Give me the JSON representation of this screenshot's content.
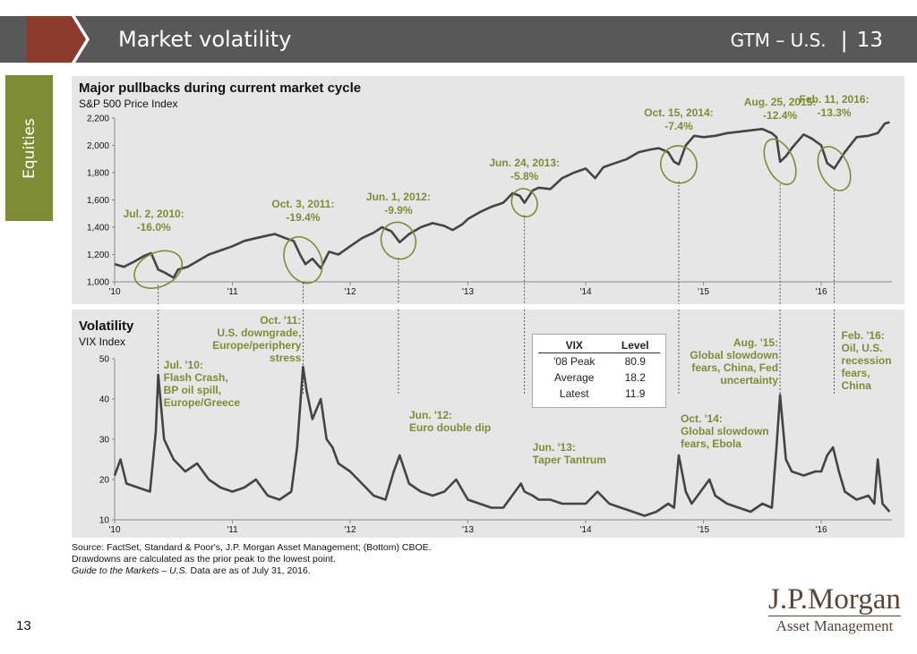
{
  "header": {
    "title": "Market volatility",
    "right_label": "GTM – U.S.",
    "separator": "|",
    "page": "13"
  },
  "section_tab": "Equities",
  "colors": {
    "banner_gray": "#585858",
    "banner_red": "#8b3a2b",
    "accent_green": "#7e8c36",
    "line": "#444444",
    "panel": "#e6e6e6"
  },
  "chart_data": [
    {
      "type": "line",
      "title": "Major pullbacks during current market cycle",
      "subtitle": "S&P 500 Price Index",
      "xlim": [
        2010.0,
        2016.6
      ],
      "ylim": [
        1000,
        2200
      ],
      "yticks": [
        1000,
        1200,
        1400,
        1600,
        1800,
        2000,
        2200
      ],
      "yticklabels": [
        "1,000",
        "1,200",
        "1,400",
        "1,600",
        "1,800",
        "2,000",
        "2,200"
      ],
      "xticks": [
        2010,
        2011,
        2012,
        2013,
        2014,
        2015,
        2016
      ],
      "xticklabels": [
        "'10",
        "'11",
        "'12",
        "'13",
        "'14",
        "'15",
        "'16"
      ],
      "grid": false,
      "series": [
        {
          "x": [
            2010.0,
            2010.08,
            2010.17,
            2010.25,
            2010.31,
            2010.37,
            2010.42,
            2010.5,
            2010.54,
            2010.62,
            2010.7,
            2010.8,
            2010.9,
            2011.0,
            2011.1,
            2011.2,
            2011.3,
            2011.36,
            2011.45,
            2011.52,
            2011.58,
            2011.62,
            2011.68,
            2011.75,
            2011.82,
            2011.9,
            2012.0,
            2012.1,
            2012.2,
            2012.27,
            2012.35,
            2012.42,
            2012.5,
            2012.6,
            2012.7,
            2012.8,
            2012.87,
            2012.95,
            2013.0,
            2013.1,
            2013.2,
            2013.3,
            2013.38,
            2013.44,
            2013.48,
            2013.55,
            2013.6,
            2013.7,
            2013.8,
            2013.9,
            2014.0,
            2014.08,
            2014.15,
            2014.25,
            2014.35,
            2014.45,
            2014.55,
            2014.62,
            2014.7,
            2014.75,
            2014.79,
            2014.85,
            2014.92,
            2015.0,
            2015.1,
            2015.2,
            2015.3,
            2015.4,
            2015.5,
            2015.58,
            2015.62,
            2015.65,
            2015.7,
            2015.75,
            2015.85,
            2015.92,
            2016.0,
            2016.05,
            2016.11,
            2016.2,
            2016.3,
            2016.4,
            2016.48,
            2016.54,
            2016.58
          ],
          "y": [
            1130,
            1110,
            1150,
            1190,
            1210,
            1090,
            1070,
            1030,
            1090,
            1110,
            1150,
            1200,
            1230,
            1260,
            1300,
            1320,
            1340,
            1350,
            1320,
            1300,
            1190,
            1130,
            1170,
            1100,
            1220,
            1200,
            1260,
            1320,
            1360,
            1400,
            1370,
            1290,
            1350,
            1400,
            1430,
            1410,
            1380,
            1420,
            1460,
            1510,
            1550,
            1580,
            1650,
            1630,
            1580,
            1670,
            1690,
            1680,
            1760,
            1800,
            1830,
            1760,
            1840,
            1870,
            1900,
            1950,
            1970,
            1980,
            1950,
            1880,
            1860,
            2000,
            2070,
            2060,
            2070,
            2090,
            2100,
            2110,
            2120,
            2090,
            2060,
            1880,
            1920,
            1980,
            2080,
            2050,
            2000,
            1870,
            1830,
            1950,
            2060,
            2070,
            2090,
            2160,
            2170
          ]
        }
      ],
      "annotations": [
        {
          "date": "Jul. 2, 2010:",
          "value": "-16.0%",
          "x": 2010.37
        },
        {
          "date": "Oct. 3, 2011:",
          "value": "-19.4%",
          "x": 2011.6
        },
        {
          "date": "Jun. 1, 2012:",
          "value": "-9.9%",
          "x": 2012.41
        },
        {
          "date": "Jun. 24, 2013:",
          "value": "-5.8%",
          "x": 2013.48
        },
        {
          "date": "Oct. 15, 2014:",
          "value": "-7.4%",
          "x": 2014.79
        },
        {
          "date": "Aug. 25, 2015:",
          "value": "-12.4%",
          "x": 2015.65
        },
        {
          "date": "Feb. 11, 2016:",
          "value": "-13.3%",
          "x": 2016.11
        }
      ]
    },
    {
      "type": "line",
      "title": "Volatility",
      "subtitle": "VIX Index",
      "xlim": [
        2010.0,
        2016.6
      ],
      "ylim": [
        10,
        50
      ],
      "yticks": [
        10,
        20,
        30,
        40,
        50
      ],
      "yticklabels": [
        "10",
        "20",
        "30",
        "40",
        "50"
      ],
      "xticks": [
        2010,
        2011,
        2012,
        2013,
        2014,
        2015,
        2016
      ],
      "xticklabels": [
        "'10",
        "'11",
        "'12",
        "'13",
        "'14",
        "'15",
        "'16"
      ],
      "grid": false,
      "series": [
        {
          "x": [
            2010.0,
            2010.05,
            2010.1,
            2010.2,
            2010.3,
            2010.35,
            2010.37,
            2010.42,
            2010.5,
            2010.6,
            2010.7,
            2010.8,
            2010.9,
            2011.0,
            2011.1,
            2011.2,
            2011.3,
            2011.4,
            2011.5,
            2011.55,
            2011.6,
            2011.63,
            2011.68,
            2011.75,
            2011.8,
            2011.85,
            2011.9,
            2012.0,
            2012.1,
            2012.2,
            2012.3,
            2012.37,
            2012.42,
            2012.5,
            2012.6,
            2012.7,
            2012.8,
            2012.9,
            2013.0,
            2013.1,
            2013.2,
            2013.3,
            2013.4,
            2013.45,
            2013.48,
            2013.55,
            2013.6,
            2013.7,
            2013.8,
            2013.9,
            2014.0,
            2014.1,
            2014.2,
            2014.3,
            2014.4,
            2014.5,
            2014.6,
            2014.7,
            2014.75,
            2014.79,
            2014.85,
            2014.9,
            2015.0,
            2015.05,
            2015.1,
            2015.2,
            2015.3,
            2015.4,
            2015.5,
            2015.58,
            2015.62,
            2015.65,
            2015.7,
            2015.75,
            2015.85,
            2015.95,
            2016.0,
            2016.05,
            2016.1,
            2016.15,
            2016.2,
            2016.3,
            2016.4,
            2016.45,
            2016.48,
            2016.52,
            2016.58
          ],
          "y": [
            21,
            25,
            19,
            18,
            17,
            32,
            46,
            30,
            25,
            22,
            24,
            20,
            18,
            17,
            18,
            20,
            16,
            15,
            17,
            28,
            48,
            42,
            35,
            40,
            30,
            28,
            24,
            22,
            19,
            16,
            15,
            22,
            26,
            19,
            17,
            16,
            17,
            20,
            15,
            14,
            13,
            13,
            17,
            19,
            17,
            16,
            15,
            15,
            14,
            14,
            14,
            17,
            14,
            13,
            12,
            11,
            12,
            14,
            13,
            26,
            17,
            14,
            18,
            20,
            16,
            14,
            13,
            12,
            14,
            13,
            28,
            41,
            25,
            22,
            21,
            22,
            22,
            26,
            28,
            22,
            17,
            15,
            16,
            14,
            25,
            14,
            12
          ]
        }
      ],
      "annotations": [
        {
          "lines": [
            "Jul. '10:",
            "Flash Crash,",
            "BP oil spill,",
            "Europe/Greece"
          ],
          "x": 2010.37
        },
        {
          "lines": [
            "Oct. '11:",
            "U.S. downgrade,",
            "Europe/periphery",
            "stress"
          ],
          "x": 2011.6
        },
        {
          "lines": [
            "Jun. '12:",
            "Euro double dip"
          ],
          "x": 2012.41
        },
        {
          "lines": [
            "Jun. '13:",
            "Taper Tantrum"
          ],
          "x": 2013.48
        },
        {
          "lines": [
            "Oct. '14:",
            "Global slowdown",
            "fears, Ebola"
          ],
          "x": 2014.79
        },
        {
          "lines": [
            "Aug. '15:",
            "Global slowdown",
            "fears, China, Fed",
            "uncertainty"
          ],
          "x": 2015.65
        },
        {
          "lines": [
            "Feb. '16:",
            "Oil, U.S.",
            "recession",
            "fears,",
            "China"
          ],
          "x": 2016.11
        }
      ],
      "table": {
        "headers": [
          "VIX",
          "Level"
        ],
        "rows": [
          [
            "'08 Peak",
            "80.9"
          ],
          [
            "Average",
            "18.2"
          ],
          [
            "Latest",
            "11.9"
          ]
        ]
      }
    }
  ],
  "footer": {
    "source": "Source: FactSet, Standard & Poor's, J.P. Morgan Asset Management; (Bottom) CBOE.",
    "note": "Drawdowns are calculated as the prior peak to the lowest point.",
    "guide_italic": "Guide to the Markets – U.S.",
    "guide_rest": " Data are as of July 31, 2016.",
    "page_number": "13"
  },
  "logo": {
    "main": "J.P.Morgan",
    "sub": "Asset Management"
  }
}
